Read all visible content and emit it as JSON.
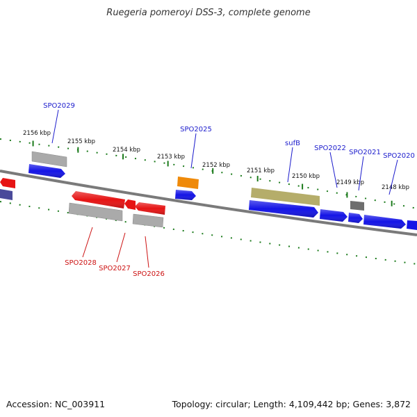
{
  "title": "Ruegeria pomeroyi DSS-3, complete genome",
  "footer": {
    "accession": "Accession: NC_003911",
    "summary": "Topology: circular; Length: 4,109,442 bp; Genes: 3,872"
  },
  "colors": {
    "background": "#ffffff",
    "backbone": "#808080",
    "tick": "#1a7a1a",
    "forward_label": "#1a1acc",
    "reverse_label": "#cc1111",
    "cds_forward": "#1414e6",
    "cds_reverse": "#e61414",
    "gene_feature": "#b0b0b0",
    "rna_feature": "#ef8a0a",
    "sufb_feature": "#b5ad6a",
    "dark_feature": "#6e6e6e",
    "partial_feature": "#4a4a9a"
  },
  "scale_ticks": [
    "2156 kbp",
    "2155 kbp",
    "2154 kbp",
    "2153 kbp",
    "2152 kbp",
    "2151 kbp",
    "2150 kbp",
    "2149 kbp",
    "2148 kbp"
  ],
  "gene_labels": [
    {
      "text": "SPO2029",
      "strand": "forward"
    },
    {
      "text": "SPO2025",
      "strand": "forward"
    },
    {
      "text": "sufB",
      "strand": "forward"
    },
    {
      "text": "SPO2022",
      "strand": "forward"
    },
    {
      "text": "SPO2021",
      "strand": "forward"
    },
    {
      "text": "SPO2020",
      "strand": "forward"
    },
    {
      "text": "SPO2028",
      "strand": "reverse"
    },
    {
      "text": "SPO2027",
      "strand": "reverse"
    },
    {
      "text": "SPO2026",
      "strand": "reverse"
    }
  ]
}
